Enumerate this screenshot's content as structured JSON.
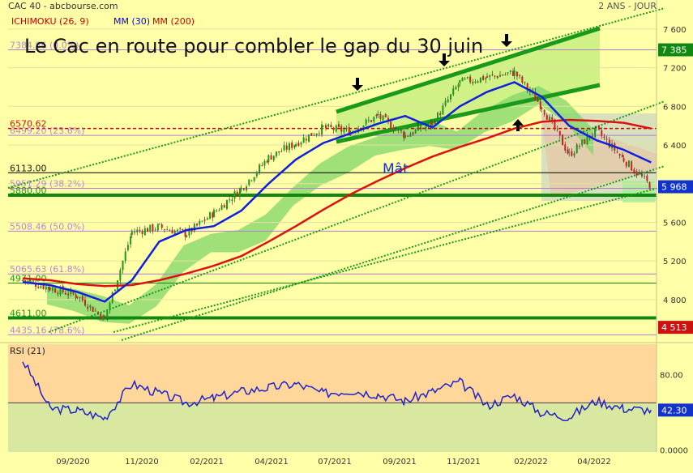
{
  "header": {
    "symbol": "CAC 40 - abcbourse.com",
    "period": "2 ANS - JOUR",
    "legend": [
      {
        "label": "ICHIMOKU (26, 9)",
        "color": "#cc0000"
      },
      {
        "label": "MM (30)",
        "color": "#0000ee"
      },
      {
        "label": "MM (200)",
        "color": "#cc0000"
      }
    ]
  },
  "colors": {
    "background": "#ffffa8",
    "rsi_band_high": "#ffd79a",
    "rsi_band_low": "#d9e8a0",
    "mm30": "#1020dd",
    "mm200": "#dd1111",
    "channel": "#1a9a1a",
    "fib": "#b37ad6",
    "up_candle": "#1a9a1a",
    "down_candle": "#cc2222",
    "rsi_line": "#2222cc"
  },
  "chart_data": [
    {
      "type": "line",
      "title": "Le Cac en route pour combler le gap du 30 juin",
      "annotation": "Mât",
      "x_labels": [
        "09/2020",
        "11/2020",
        "02/2021",
        "04/2021",
        "07/2021",
        "09/2021",
        "11/2021",
        "02/2022",
        "04/2022"
      ],
      "y_ticks": [
        7600,
        7200,
        6800,
        6400,
        6000,
        5600,
        5200,
        4800
      ],
      "y_tick_labels": [
        "7 600",
        "7 200",
        "6 800",
        "6 400",
        "6 000",
        "5 600",
        "5 200",
        "4 800"
      ],
      "ylim": [
        4380,
        7800
      ],
      "price_tags": [
        {
          "label": "7 385",
          "value": 7385,
          "color": "#118811"
        },
        {
          "label": "5 968",
          "value": 5968,
          "color": "#1133cc"
        },
        {
          "label": "4 513",
          "value": 4513,
          "color": "#cc1111"
        }
      ],
      "levels": [
        {
          "label": "7384.86 (0.0%)",
          "value": 7384.86,
          "color": "#b37ad6",
          "style": "fib"
        },
        {
          "label": "6570.62",
          "value": 6570.62,
          "color": "#cc0000",
          "style": "dashed"
        },
        {
          "label": "6499.20 (23.6%)",
          "value": 6499.2,
          "color": "#b37ad6",
          "style": "fib"
        },
        {
          "label": "6113.00",
          "value": 6113,
          "color": "#000000",
          "style": "thin"
        },
        {
          "label": "5951.29 (38.2%)",
          "value": 5951.29,
          "color": "#b37ad6",
          "style": "fib"
        },
        {
          "label": "5880.00",
          "value": 5880,
          "color": "#118811",
          "style": "thick"
        },
        {
          "label": "5508.46 (50.0%)",
          "value": 5508.46,
          "color": "#b37ad6",
          "style": "fib"
        },
        {
          "label": "5065.63 (61.8%)",
          "value": 5065.63,
          "color": "#b37ad6",
          "style": "fib"
        },
        {
          "label": "4971.00",
          "value": 4971,
          "color": "#118811",
          "style": "thin"
        },
        {
          "label": "4611.00",
          "value": 4611,
          "color": "#118811",
          "style": "thick"
        },
        {
          "label": "4435.16 (78.6%)",
          "value": 4435.16,
          "color": "#b37ad6",
          "style": "fib"
        }
      ],
      "series": [
        {
          "name": "CAC 40",
          "x": [
            "07/2020",
            "08/2020",
            "09/2020",
            "10/2020",
            "11/2020",
            "12/2020",
            "01/2021",
            "02/2021",
            "03/2021",
            "04/2021",
            "05/2021",
            "06/2021",
            "07/2021",
            "08/2021",
            "09/2021",
            "10/2021",
            "11/2021",
            "12/2021",
            "01/2022",
            "02/2022",
            "03/2022",
            "04/2022",
            "05/2022",
            "06/2022"
          ],
          "values": [
            5000,
            4920,
            4840,
            4600,
            5500,
            5550,
            5480,
            5700,
            5950,
            6270,
            6420,
            6580,
            6540,
            6700,
            6500,
            6620,
            7050,
            7100,
            7150,
            6800,
            6300,
            6550,
            6250,
            5968
          ]
        },
        {
          "name": "MM (30)",
          "x": [
            "07/2020",
            "08/2020",
            "09/2020",
            "10/2020",
            "11/2020",
            "12/2020",
            "01/2021",
            "02/2021",
            "03/2021",
            "04/2021",
            "05/2021",
            "06/2021",
            "07/2021",
            "08/2021",
            "09/2021",
            "10/2021",
            "11/2021",
            "12/2021",
            "01/2022",
            "02/2022",
            "03/2022",
            "04/2022",
            "05/2022",
            "06/2022"
          ],
          "values": [
            4980,
            4950,
            4880,
            4780,
            5000,
            5400,
            5520,
            5560,
            5720,
            6000,
            6250,
            6420,
            6520,
            6620,
            6700,
            6580,
            6800,
            6950,
            7050,
            6900,
            6600,
            6450,
            6350,
            6220
          ]
        },
        {
          "name": "MM (200)",
          "x": [
            "07/2020",
            "08/2020",
            "09/2020",
            "10/2020",
            "11/2020",
            "12/2020",
            "01/2021",
            "02/2021",
            "03/2021",
            "04/2021",
            "05/2021",
            "06/2021",
            "07/2021",
            "08/2021",
            "09/2021",
            "10/2021",
            "11/2021",
            "12/2021",
            "01/2022",
            "02/2022",
            "03/2022",
            "04/2022",
            "05/2022",
            "06/2022"
          ],
          "values": [
            5020,
            5000,
            4960,
            4940,
            4950,
            5000,
            5070,
            5150,
            5250,
            5400,
            5560,
            5730,
            5890,
            6030,
            6160,
            6280,
            6380,
            6470,
            6570,
            6640,
            6660,
            6650,
            6630,
            6570
          ]
        }
      ]
    },
    {
      "type": "line",
      "title": "RSI (21)",
      "y_ticks": [
        80,
        40,
        0
      ],
      "y_tick_labels": [
        "80.00",
        "40.00",
        "0.0000"
      ],
      "ylim": [
        -2,
        112
      ],
      "last_value_label": "42.30",
      "last_value": 42.3,
      "reference_line": 50,
      "band_split": 50,
      "series": [
        {
          "name": "RSI (21)",
          "x": [
            "07/2020",
            "08/2020",
            "09/2020",
            "10/2020",
            "11/2020",
            "12/2020",
            "01/2021",
            "02/2021",
            "03/2021",
            "04/2021",
            "05/2021",
            "06/2021",
            "07/2021",
            "08/2021",
            "09/2021",
            "10/2021",
            "11/2021",
            "12/2021",
            "01/2022",
            "02/2022",
            "03/2022",
            "04/2022",
            "05/2022",
            "06/2022"
          ],
          "values": [
            95,
            44,
            42,
            34,
            70,
            60,
            50,
            55,
            62,
            66,
            70,
            60,
            63,
            59,
            52,
            62,
            72,
            47,
            58,
            39,
            35,
            52,
            44,
            42.3
          ]
        }
      ]
    }
  ]
}
